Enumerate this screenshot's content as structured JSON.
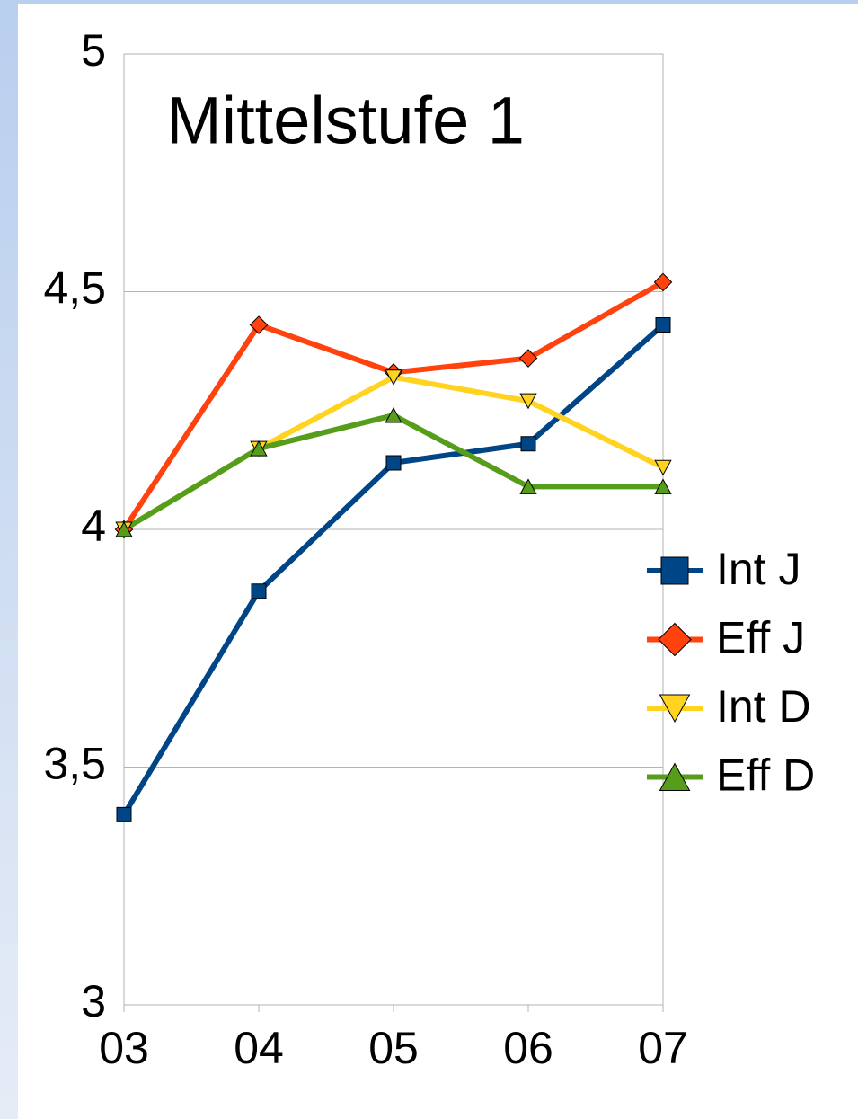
{
  "chart_data": {
    "type": "line",
    "title": "Mittelstufe 1",
    "categories": [
      "03",
      "04",
      "05",
      "06",
      "07"
    ],
    "series": [
      {
        "name": "Int J",
        "color": "#004586",
        "marker": "square",
        "values": [
          3.4,
          3.87,
          4.14,
          4.18,
          4.43
        ]
      },
      {
        "name": "Eff J",
        "color": "#ff420e",
        "marker": "diamond",
        "values": [
          4.0,
          4.43,
          4.33,
          4.36,
          4.52
        ]
      },
      {
        "name": "Int D",
        "color": "#ffd320",
        "marker": "triangle-down",
        "values": [
          4.0,
          4.17,
          4.32,
          4.27,
          4.13
        ]
      },
      {
        "name": "Eff D",
        "color": "#579d1c",
        "marker": "triangle-up",
        "values": [
          4.0,
          4.17,
          4.24,
          4.09,
          4.09
        ]
      }
    ],
    "ylim": [
      3,
      5
    ],
    "yticks": [
      3,
      {
        "value": 3.5,
        "label": "3,5"
      },
      4,
      {
        "value": 4.5,
        "label": "4,5"
      },
      5
    ],
    "grid": true,
    "legend": "right"
  }
}
